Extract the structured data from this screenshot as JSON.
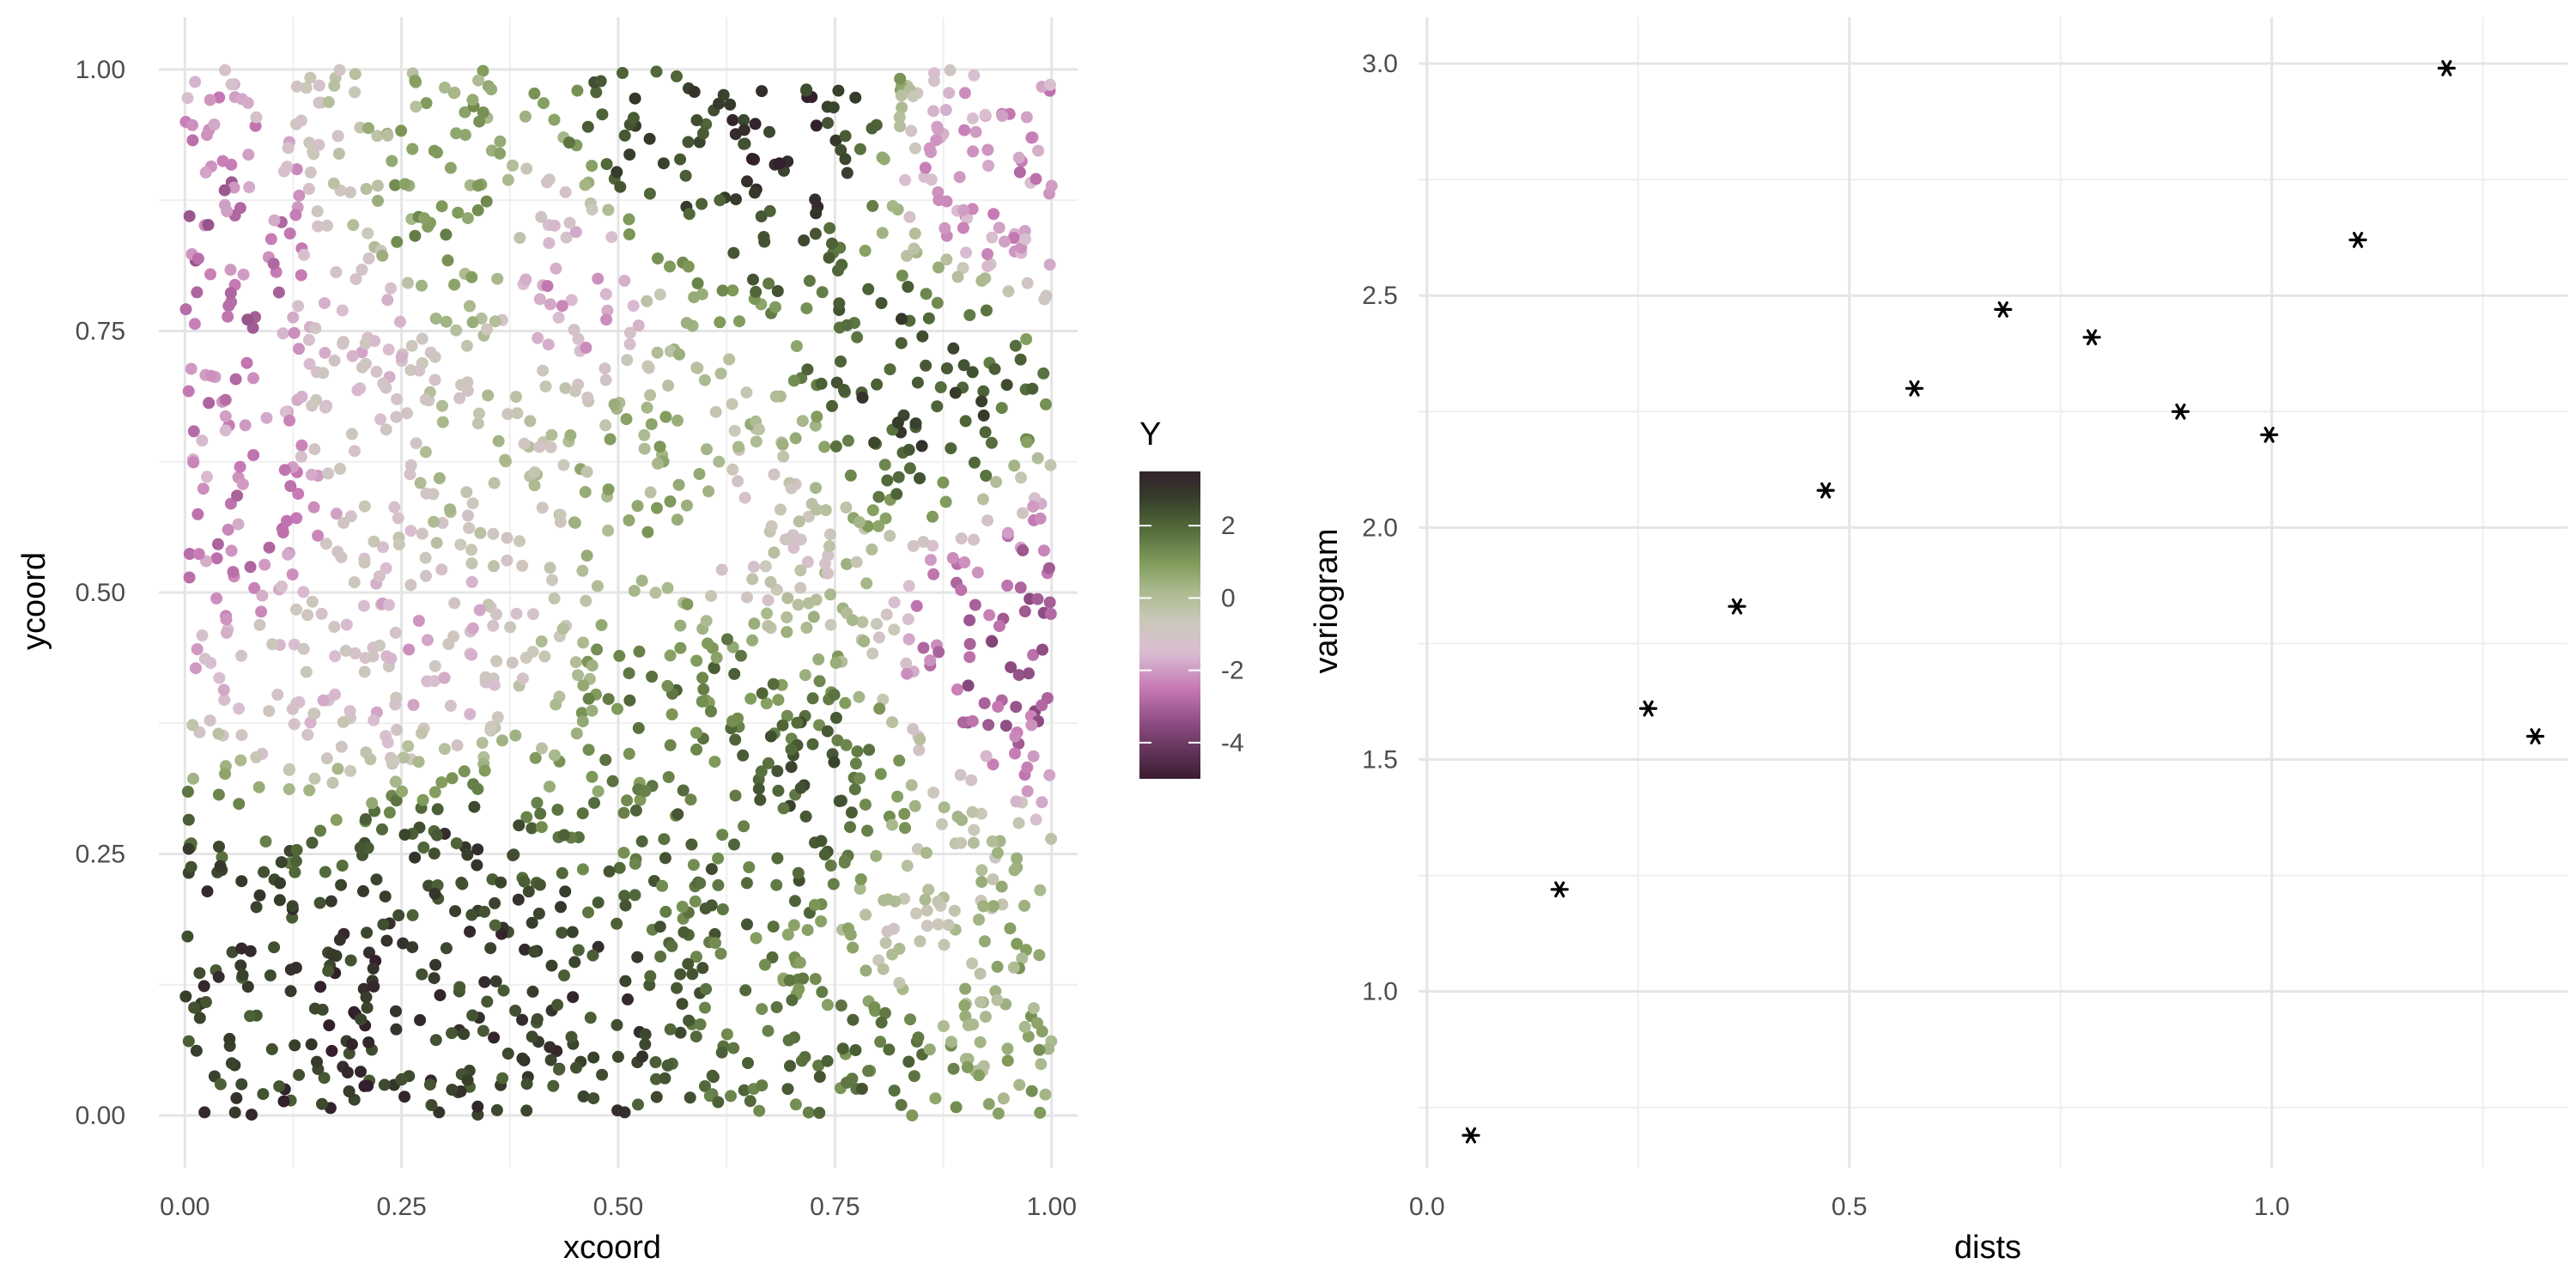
{
  "chart_data": [
    {
      "type": "scatter",
      "xlabel": "xcoord",
      "ylabel": "ycoord",
      "xlim": [
        -0.03,
        1.03
      ],
      "ylim": [
        -0.05,
        1.05
      ],
      "xticks": [
        "0.00",
        "0.25",
        "0.50",
        "0.75",
        "1.00"
      ],
      "yticks": [
        "0.00",
        "0.25",
        "0.50",
        "0.75",
        "1.00"
      ],
      "x_tick_values": [
        0,
        0.25,
        0.5,
        0.75,
        1
      ],
      "y_tick_values": [
        0,
        0.25,
        0.5,
        0.75,
        1
      ],
      "grid": true,
      "point_count": 2000,
      "color_variable": "Y",
      "legend": {
        "title": "Y",
        "position": "right",
        "range": [
          -5,
          3.5
        ],
        "ticks": [
          "2",
          "0",
          "-2",
          "-4"
        ],
        "tick_values": [
          2,
          0,
          -2,
          -4
        ],
        "colors": [
          {
            "value": -5,
            "color": "#3a1c31"
          },
          {
            "value": -3.5,
            "color": "#8a4a80"
          },
          {
            "value": -2.5,
            "color": "#c679b4"
          },
          {
            "value": -1.5,
            "color": "#d9bed1"
          },
          {
            "value": -0.6,
            "color": "#cbc8ba"
          },
          {
            "value": 0.2,
            "color": "#a9b98d"
          },
          {
            "value": 1.0,
            "color": "#7f9a5a"
          },
          {
            "value": 2.0,
            "color": "#4f6538"
          },
          {
            "value": 2.8,
            "color": "#363d2b"
          },
          {
            "value": 3.5,
            "color": "#33202c"
          }
        ]
      },
      "field_anchors": [
        {
          "x": 0.05,
          "y": 0.15,
          "v": 2.7
        },
        {
          "x": 0.2,
          "y": 0.1,
          "v": 3.0
        },
        {
          "x": 0.3,
          "y": 0.2,
          "v": 2.7
        },
        {
          "x": 0.45,
          "y": 0.05,
          "v": 2.7
        },
        {
          "x": 0.7,
          "y": 0.3,
          "v": 2.2
        },
        {
          "x": 0.8,
          "y": 0.05,
          "v": 1.8
        },
        {
          "x": 0.85,
          "y": 0.15,
          "v": -0.6
        },
        {
          "x": 0.95,
          "y": 0.1,
          "v": 0.5
        },
        {
          "x": 0.05,
          "y": 0.8,
          "v": -2.7
        },
        {
          "x": 0.05,
          "y": 0.55,
          "v": -2.3
        },
        {
          "x": 0.15,
          "y": 0.45,
          "v": -1.2
        },
        {
          "x": 0.2,
          "y": 0.75,
          "v": -1.2
        },
        {
          "x": 0.28,
          "y": 0.45,
          "v": -1.5
        },
        {
          "x": 0.45,
          "y": 0.8,
          "v": -2.0
        },
        {
          "x": 0.95,
          "y": 0.45,
          "v": -3.0
        },
        {
          "x": 0.93,
          "y": 0.9,
          "v": -2.2
        },
        {
          "x": 0.55,
          "y": 0.9,
          "v": 2.7
        },
        {
          "x": 0.7,
          "y": 0.95,
          "v": 3.0
        },
        {
          "x": 0.85,
          "y": 0.7,
          "v": 2.5
        },
        {
          "x": 0.55,
          "y": 0.6,
          "v": 0.5
        },
        {
          "x": 0.65,
          "y": 0.55,
          "v": -0.8
        },
        {
          "x": 0.35,
          "y": 0.6,
          "v": -0.3
        },
        {
          "x": 0.3,
          "y": 0.85,
          "v": 1.0
        },
        {
          "x": 0.6,
          "y": 0.4,
          "v": 1.5
        }
      ]
    },
    {
      "type": "scatter",
      "xlabel": "dists",
      "ylabel": "variogram",
      "xlim": [
        -0.01,
        1.35
      ],
      "ylim": [
        0.62,
        3.1
      ],
      "xticks": [
        "0.0",
        "0.5",
        "1.0"
      ],
      "yticks": [
        "1.0",
        "1.5",
        "2.0",
        "2.5",
        "3.0"
      ],
      "x_tick_values": [
        0,
        0.5,
        1.0
      ],
      "y_tick_values": [
        1.0,
        1.5,
        2.0,
        2.5,
        3.0
      ],
      "grid": true,
      "marker": "*",
      "x": [
        0.052,
        0.157,
        0.262,
        0.367,
        0.472,
        0.577,
        0.682,
        0.787,
        0.892,
        0.997,
        1.102,
        1.207,
        1.312
      ],
      "y": [
        0.69,
        1.22,
        1.61,
        1.83,
        2.08,
        2.3,
        2.47,
        2.41,
        2.25,
        2.2,
        2.62,
        2.99,
        1.55
      ]
    }
  ]
}
